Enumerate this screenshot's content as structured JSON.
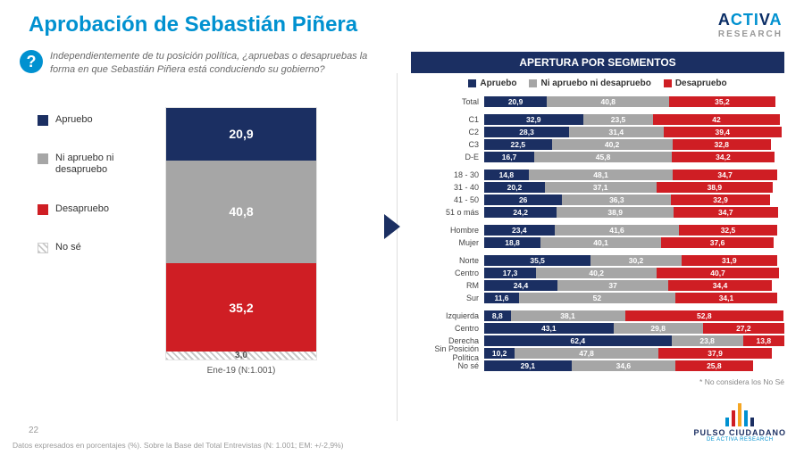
{
  "title": "Aprobación de Sebastián Piñera",
  "question": "Independientemente de tu posición política, ¿apruebas o desapruebas la forma en que Sebastián Piñera está conduciendo su gobierno?",
  "legend": {
    "apruebo": "Apruebo",
    "neutral": "Ni apruebo ni desapruebo",
    "desapruebo": "Desapruebo",
    "nose": "No sé"
  },
  "colors": {
    "apruebo": "#1b2f62",
    "neutral": "#a6a6a6",
    "desapruebo": "#cf1e24",
    "nose_hatch": "repeating-linear-gradient(45deg,#c8c8c8 0 2px,#fff 2px 5px)",
    "accent": "#0091d0",
    "background": "#ffffff"
  },
  "stacked": {
    "x_label": "Ene-19 (N:1.001)",
    "segments": [
      {
        "key": "apruebo",
        "value": 20.9,
        "label": "20,9"
      },
      {
        "key": "neutral",
        "value": 40.8,
        "label": "40,8"
      },
      {
        "key": "desapruebo",
        "value": 35.2,
        "label": "35,2"
      },
      {
        "key": "nose",
        "value": 3.0,
        "label": "3,0"
      }
    ]
  },
  "segments_panel": {
    "title": "APERTURA POR SEGMENTOS",
    "legend": [
      "Apruebo",
      "Ni apruebo ni desapruebo",
      "Desapruebo"
    ],
    "note": "* No considera los No Sé",
    "groups": [
      [
        {
          "label": "Total",
          "v": [
            20.9,
            40.8,
            35.2
          ],
          "t": [
            "20,9",
            "40,8",
            "35,2"
          ]
        }
      ],
      [
        {
          "label": "C1",
          "v": [
            32.9,
            23.5,
            42.0
          ],
          "t": [
            "32,9",
            "23,5",
            "42"
          ]
        },
        {
          "label": "C2",
          "v": [
            28.3,
            31.4,
            39.4
          ],
          "t": [
            "28,3",
            "31,4",
            "39,4"
          ]
        },
        {
          "label": "C3",
          "v": [
            22.5,
            40.2,
            32.8
          ],
          "t": [
            "22,5",
            "40,2",
            "32,8"
          ]
        },
        {
          "label": "D-E",
          "v": [
            16.7,
            45.8,
            34.2
          ],
          "t": [
            "16,7",
            "45,8",
            "34,2"
          ]
        }
      ],
      [
        {
          "label": "18 - 30",
          "v": [
            14.8,
            48.1,
            34.7
          ],
          "t": [
            "14,8",
            "48,1",
            "34,7"
          ]
        },
        {
          "label": "31 - 40",
          "v": [
            20.2,
            37.1,
            38.9
          ],
          "t": [
            "20,2",
            "37,1",
            "38,9"
          ]
        },
        {
          "label": "41 - 50",
          "v": [
            26.0,
            36.3,
            32.9
          ],
          "t": [
            "26",
            "36,3",
            "32,9"
          ]
        },
        {
          "label": "51 o más",
          "v": [
            24.2,
            38.9,
            34.7
          ],
          "t": [
            "24,2",
            "38,9",
            "34,7"
          ]
        }
      ],
      [
        {
          "label": "Hombre",
          "v": [
            23.4,
            41.6,
            32.5
          ],
          "t": [
            "23,4",
            "41,6",
            "32,5"
          ]
        },
        {
          "label": "Mujer",
          "v": [
            18.8,
            40.1,
            37.6
          ],
          "t": [
            "18,8",
            "40,1",
            "37,6"
          ]
        }
      ],
      [
        {
          "label": "Norte",
          "v": [
            35.5,
            30.2,
            31.9
          ],
          "t": [
            "35,5",
            "30,2",
            "31,9"
          ]
        },
        {
          "label": "Centro",
          "v": [
            17.3,
            40.2,
            40.7
          ],
          "t": [
            "17,3",
            "40,2",
            "40,7"
          ]
        },
        {
          "label": "RM",
          "v": [
            24.4,
            37.0,
            34.4
          ],
          "t": [
            "24,4",
            "37",
            "34,4"
          ]
        },
        {
          "label": "Sur",
          "v": [
            11.6,
            52.0,
            34.1
          ],
          "t": [
            "11,6",
            "52",
            "34,1"
          ]
        }
      ],
      [
        {
          "label": "Izquierda",
          "v": [
            8.8,
            38.1,
            52.8
          ],
          "t": [
            "8,8",
            "38,1",
            "52,8"
          ]
        },
        {
          "label": "Centro",
          "v": [
            43.1,
            29.8,
            27.2
          ],
          "t": [
            "43,1",
            "29,8",
            "27,2"
          ]
        },
        {
          "label": "Derecha",
          "v": [
            62.4,
            23.8,
            13.8
          ],
          "t": [
            "62,4",
            "23,8",
            "13,8"
          ]
        },
        {
          "label": "Sin Posición Política",
          "v": [
            10.2,
            47.8,
            37.9
          ],
          "t": [
            "10,2",
            "47,8",
            "37,9"
          ]
        },
        {
          "label": "No sé",
          "v": [
            29.1,
            34.6,
            25.8
          ],
          "t": [
            "29,1",
            "34,6",
            "25,8"
          ]
        }
      ]
    ]
  },
  "page_number": "22",
  "footnote": "Datos expresados en porcentajes (%). Sobre la Base del Total Entrevistas (N: 1.001; EM: +/-2,9%)",
  "brand": {
    "activa": "ACTIVA",
    "activa_sub": "RESEARCH",
    "pulso": "PULSO CIUDADANO",
    "pulso_sub": "DE ACTIVA RESEARCH"
  }
}
